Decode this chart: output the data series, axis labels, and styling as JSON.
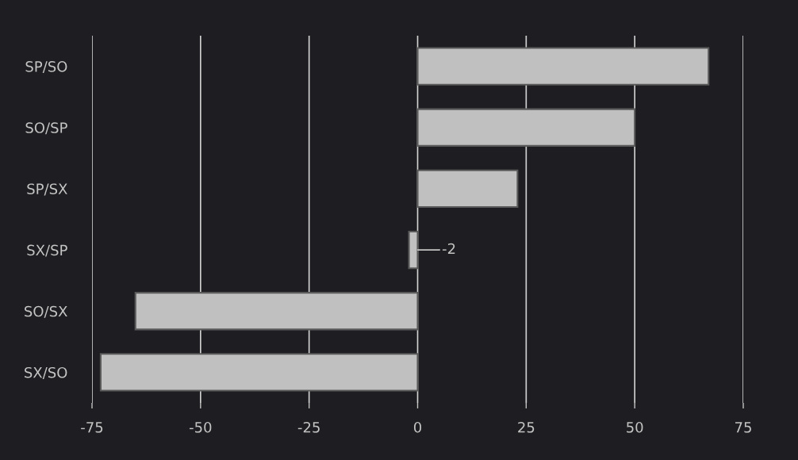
{
  "chart_data": {
    "type": "bar",
    "orientation": "horizontal",
    "categories": [
      "SP/SO",
      "SO/SP",
      "SP/SX",
      "SX/SP",
      "SO/SX",
      "SX/SO"
    ],
    "values": [
      67,
      50,
      23,
      -2,
      -65,
      -73
    ],
    "value_labels": [
      null,
      null,
      null,
      "-2",
      null,
      null
    ],
    "color": "#c0c0c0",
    "xlim": [
      -75,
      75
    ],
    "xticks": [
      -75,
      -50,
      -25,
      0,
      25,
      50,
      75
    ],
    "grid": "x",
    "legend": false
  }
}
